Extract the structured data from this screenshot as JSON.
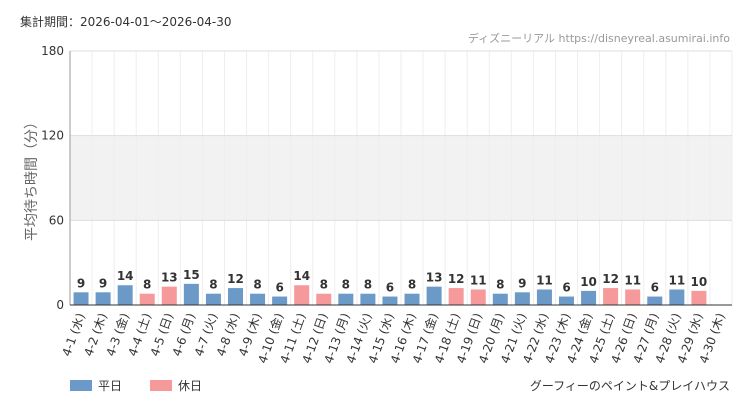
{
  "chart_data": {
    "type": "bar",
    "title": "集計期間：2026-04-01〜2026-04-30",
    "source": "ディズニーリアル https://disneyreal.asumirai.info",
    "y_label": "平均待ち時間（分）",
    "footnote": "グーフィーのペイント&プレイハウス",
    "categories": [
      "4-1 (水)",
      "4-2 (木)",
      "4-3 (金)",
      "4-4 (土)",
      "4-5 (日)",
      "4-6 (月)",
      "4-7 (火)",
      "4-8 (水)",
      "4-9 (木)",
      "4-10 (金)",
      "4-11 (土)",
      "4-12 (日)",
      "4-13 (月)",
      "4-14 (火)",
      "4-15 (水)",
      "4-16 (木)",
      "4-17 (金)",
      "4-18 (土)",
      "4-19 (日)",
      "4-20 (月)",
      "4-21 (火)",
      "4-22 (水)",
      "4-23 (木)",
      "4-24 (金)",
      "4-25 (土)",
      "4-26 (日)",
      "4-27 (月)",
      "4-28 (火)",
      "4-29 (水)",
      "4-30 (木)"
    ],
    "series": [
      {
        "name": "平日",
        "color": "#6b9ac8",
        "values": [
          9,
          9,
          14,
          null,
          null,
          15,
          8,
          12,
          8,
          6,
          null,
          null,
          8,
          8,
          6,
          8,
          13,
          null,
          null,
          8,
          9,
          11,
          6,
          10,
          null,
          null,
          6,
          11,
          null,
          null
        ]
      },
      {
        "name": "休日",
        "color": "#f5999a",
        "values": [
          null,
          null,
          null,
          8,
          13,
          null,
          null,
          null,
          null,
          null,
          14,
          8,
          null,
          null,
          null,
          null,
          null,
          12,
          11,
          null,
          null,
          null,
          null,
          null,
          12,
          11,
          null,
          null,
          10,
          null
        ]
      }
    ],
    "ylim": [
      0,
      180
    ],
    "yticks": [
      0,
      60,
      120,
      180
    ],
    "grid": true
  }
}
